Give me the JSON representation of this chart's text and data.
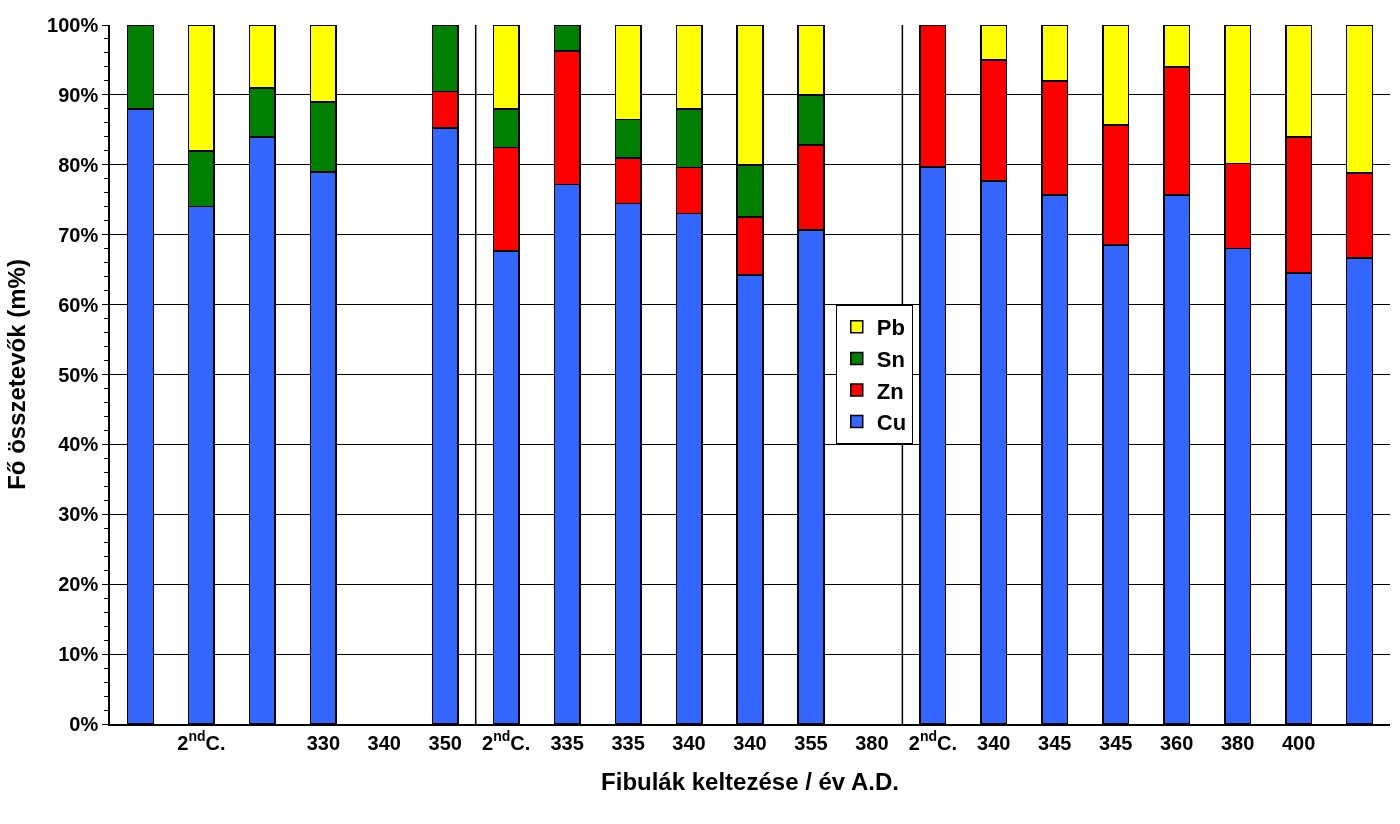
{
  "chart_data": {
    "type": "bar",
    "stacked": true,
    "xlabel": "Fibulák keltezése / év A.D.",
    "ylabel": "Fő összetevők (m%)",
    "categories": [
      null,
      "2$^{nd}$C.",
      null,
      "330",
      "340",
      "350",
      "2$^{nd}$C.",
      "335",
      "335",
      "340",
      "340",
      "355",
      "380",
      "2$^{nd}$C.",
      "340",
      "345",
      "345",
      "360",
      "380",
      "400",
      null
    ],
    "series": [
      {
        "name": "Cu",
        "color": "#3366ff",
        "values": [
          88,
          74,
          84,
          79,
          null,
          85.3,
          67.7,
          77.2,
          74.5,
          73,
          64.2,
          70.7,
          null,
          79.7,
          77.7,
          75.7,
          68.5,
          75.7,
          68,
          64.5,
          66.7
        ]
      },
      {
        "name": "Zn",
        "color": "#ff0000",
        "values": [
          null,
          null,
          null,
          null,
          null,
          5.2,
          14.8,
          19.1,
          6.5,
          6.6,
          8.3,
          12.1,
          null,
          20.3,
          17.3,
          16.3,
          17.2,
          18.3,
          12.2,
          19.5,
          12.1
        ]
      },
      {
        "name": "Sn",
        "color": "#008000",
        "values": [
          12,
          8,
          7,
          10,
          null,
          9.5,
          5.5,
          3.7,
          5.5,
          8.4,
          7.5,
          7.2,
          null,
          null,
          null,
          null,
          null,
          null,
          null,
          null,
          null
        ]
      },
      {
        "name": "Pb",
        "color": "#ffff00",
        "values": [
          null,
          18,
          9,
          11,
          null,
          null,
          12,
          null,
          13.5,
          12,
          20,
          10,
          null,
          null,
          5,
          8,
          14.3,
          6,
          19.8,
          16,
          21.2
        ]
      }
    ],
    "ylim": [
      0,
      100
    ],
    "yticks": [
      {
        "value": 0,
        "label": "0%"
      },
      {
        "value": 10,
        "label": "10%"
      },
      {
        "value": 20,
        "label": "20%"
      },
      {
        "value": 30,
        "label": "30%"
      },
      {
        "value": 40,
        "label": "40%"
      },
      {
        "value": 50,
        "label": "50%"
      },
      {
        "value": 60,
        "label": "60%"
      },
      {
        "value": 70,
        "label": "70%"
      },
      {
        "value": 80,
        "label": "80%"
      },
      {
        "value": 90,
        "label": "90%"
      },
      {
        "value": 100,
        "label": "100%"
      }
    ],
    "grid": "y",
    "legend": "center"
  }
}
